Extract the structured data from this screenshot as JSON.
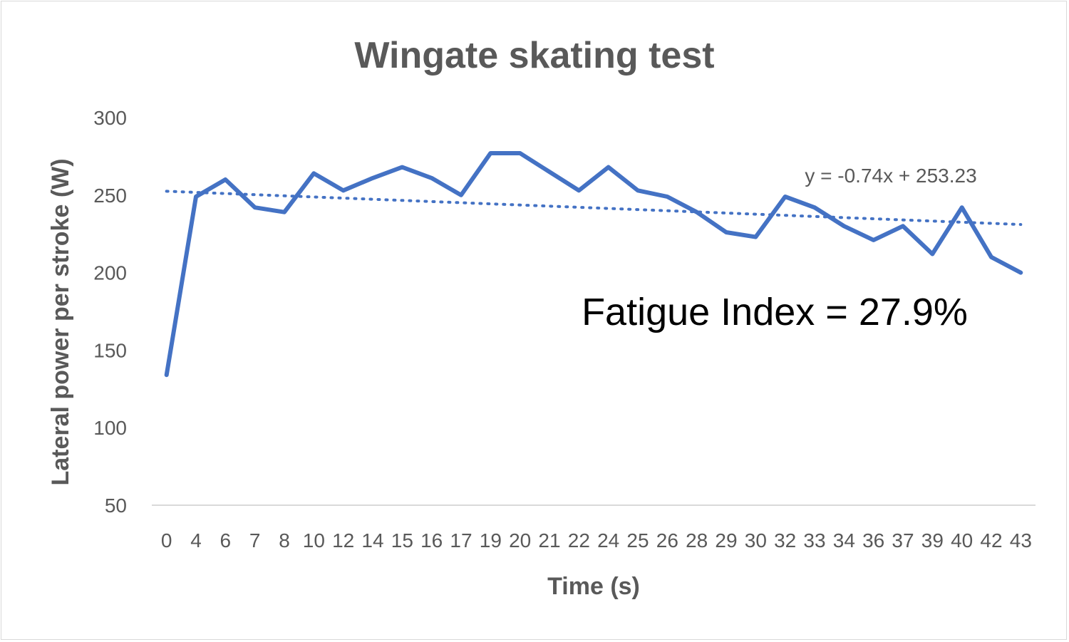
{
  "chart_data": {
    "type": "line",
    "title": "Wingate skating test",
    "xlabel": "Time (s)",
    "ylabel": "Lateral power per stroke (W)",
    "ylim": [
      50,
      300
    ],
    "yticks": [
      50,
      100,
      150,
      200,
      250,
      300
    ],
    "grid": false,
    "categories": [
      "0",
      "4",
      "6",
      "7",
      "8",
      "10",
      "12",
      "14",
      "15",
      "16",
      "17",
      "19",
      "20",
      "21",
      "22",
      "24",
      "25",
      "26",
      "28",
      "29",
      "30",
      "32",
      "33",
      "34",
      "36",
      "37",
      "39",
      "40",
      "42",
      "43"
    ],
    "series": [
      {
        "values": [
          134,
          249,
          260,
          242,
          239,
          264,
          253,
          261,
          268,
          261,
          250,
          277,
          277,
          265,
          253,
          268,
          253,
          249,
          239,
          226,
          223,
          249,
          242,
          230,
          221,
          230,
          212,
          242,
          210,
          200
        ],
        "color": "#4472C4"
      }
    ],
    "trendline": {
      "type": "linear",
      "slope": -0.74,
      "intercept": 253.23,
      "equation": "y = -0.74x + 253.23",
      "color": "#4472C4",
      "style": "dotted"
    },
    "annotation": "Fatigue Index = 27.9%"
  }
}
